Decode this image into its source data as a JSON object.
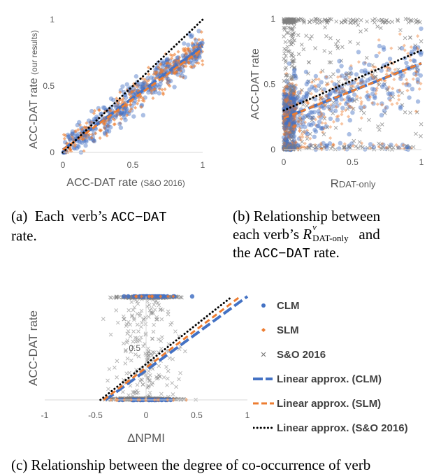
{
  "chart_data": [
    {
      "type": "scatter",
      "panel": "a",
      "xlabel": "ACC-DAT rate",
      "xlabel_note": "(S&O 2016)",
      "ylabel": "ACC-DAT rate",
      "ylabel_note": "(our results)",
      "xlim": [
        0,
        1
      ],
      "ylim": [
        0,
        1
      ],
      "x_ticks": [
        "0",
        "0.5",
        "1"
      ],
      "y_ticks": [
        "0",
        "0.5",
        "1"
      ],
      "series": [
        {
          "name": "CLM",
          "color": "#4472c4",
          "marker": "circle"
        },
        {
          "name": "SLM",
          "color": "#ed7d31",
          "marker": "diamond"
        }
      ],
      "trend_lines": [
        {
          "name": "Linear approx. (CLM)",
          "color": "#4472c4",
          "style": "long-dash",
          "intercept": 0.02,
          "slope": 0.78
        },
        {
          "name": "Linear approx. (SLM)",
          "color": "#ed7d31",
          "style": "dash",
          "intercept": 0.02,
          "slope": 0.76
        },
        {
          "name": "Linear approx. (S&O 2016)",
          "color": "#000000",
          "style": "dotted",
          "intercept": 0.0,
          "slope": 1.0
        }
      ]
    },
    {
      "type": "scatter",
      "panel": "b",
      "xlabel": "R",
      "xlabel_sub": "DAT-only",
      "ylabel": "ACC-DAT rate",
      "xlim": [
        0,
        1
      ],
      "ylim": [
        0,
        1
      ],
      "x_ticks": [
        "0",
        "0.5",
        "1"
      ],
      "y_ticks": [
        "0",
        "0.5",
        "1"
      ],
      "series": [
        {
          "name": "CLM",
          "color": "#4472c4",
          "marker": "circle"
        },
        {
          "name": "SLM",
          "color": "#ed7d31",
          "marker": "diamond"
        },
        {
          "name": "S&O 2016",
          "color": "#7f7f7f",
          "marker": "cross"
        }
      ],
      "trend_lines": [
        {
          "name": "Linear approx. (CLM)",
          "color": "#4472c4",
          "style": "long-dash",
          "intercept": 0.24,
          "slope": 0.42
        },
        {
          "name": "Linear approx. (SLM)",
          "color": "#ed7d31",
          "style": "dash",
          "intercept": 0.24,
          "slope": 0.42
        },
        {
          "name": "Linear approx. (S&O 2016)",
          "color": "#000000",
          "style": "dotted",
          "intercept": 0.3,
          "slope": 0.46
        }
      ]
    },
    {
      "type": "scatter",
      "panel": "c",
      "xlabel": "ΔNPMI",
      "ylabel": "ACC-DAT rate",
      "xlim": [
        -1,
        1
      ],
      "ylim": [
        0,
        1
      ],
      "x_ticks": [
        "-1",
        "-0.5",
        "0",
        "0.5",
        "1"
      ],
      "y_ticks": [
        "0.5"
      ],
      "series": [
        {
          "name": "CLM",
          "color": "#4472c4",
          "marker": "circle"
        },
        {
          "name": "SLM",
          "color": "#ed7d31",
          "marker": "diamond"
        },
        {
          "name": "S&O 2016",
          "color": "#7f7f7f",
          "marker": "cross"
        }
      ],
      "trend_lines": [
        {
          "name": "Linear approx. (CLM)",
          "color": "#4472c4",
          "style": "long-dash",
          "x": [
            -0.4,
            1.0
          ],
          "y": [
            0.0,
            1.0
          ]
        },
        {
          "name": "Linear approx. (SLM)",
          "color": "#ed7d31",
          "style": "dash",
          "x": [
            -0.42,
            0.93
          ],
          "y": [
            0.0,
            1.0
          ]
        },
        {
          "name": "Linear approx. (S&O 2016)",
          "color": "#000000",
          "style": "dotted",
          "x": [
            -0.45,
            0.85
          ],
          "y": [
            0.0,
            1.0
          ]
        }
      ]
    }
  ],
  "legend": [
    {
      "label": "CLM",
      "icon": "circle-marker-icon",
      "color": "#4472c4"
    },
    {
      "label": "SLM",
      "icon": "diamond-marker-icon",
      "color": "#ed7d31"
    },
    {
      "label": "S&O 2016",
      "icon": "cross-marker-icon",
      "color": "#7f7f7f"
    },
    {
      "label": "Linear approx. (CLM)",
      "icon": "dash-line-icon",
      "color": "#4472c4"
    },
    {
      "label": "Linear approx. (SLM)",
      "icon": "dash-line-icon",
      "color": "#ed7d31"
    },
    {
      "label": "Linear approx. (S&O 2016)",
      "icon": "dotted-line-icon",
      "color": "#000000"
    }
  ],
  "captions": {
    "a": {
      "prefix": "(a)  Each  verb’s ",
      "code": "ACC−DAT",
      "line2": "rate."
    },
    "b": {
      "line1": "(b) Relationship between",
      "line2_pre": "each verb’s ",
      "r": "R",
      "r_sup": "v",
      "r_sub": "DAT-only",
      "line2_post": " and",
      "line3_pre": "the ",
      "code": "ACC−DAT",
      "line3_post": " rate."
    },
    "c": "(c) Relationship between the degree of co-occurrence of verb"
  }
}
